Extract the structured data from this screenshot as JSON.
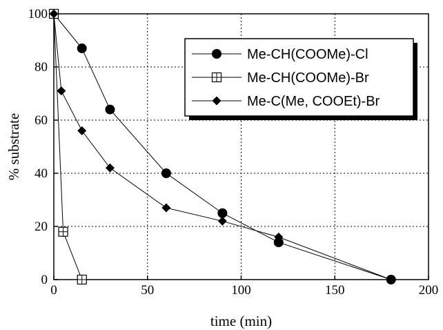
{
  "chart_data": {
    "type": "line",
    "title": "",
    "xlabel": "time (min)",
    "ylabel": "% substrate",
    "xlim": [
      0,
      200
    ],
    "ylim": [
      0,
      100
    ],
    "x_ticks": [
      0,
      50,
      100,
      150,
      200
    ],
    "y_ticks": [
      0,
      20,
      40,
      60,
      80,
      100
    ],
    "grid": true,
    "grid_style": "dotted",
    "legend_position": "top-right",
    "series": [
      {
        "name": "Me-CH(COOMe)-Cl",
        "marker": "filled-circle",
        "color": "#000000",
        "points": [
          {
            "x": 0,
            "y": 100
          },
          {
            "x": 15,
            "y": 87
          },
          {
            "x": 30,
            "y": 64
          },
          {
            "x": 60,
            "y": 40
          },
          {
            "x": 90,
            "y": 25
          },
          {
            "x": 120,
            "y": 14
          },
          {
            "x": 180,
            "y": 0
          }
        ]
      },
      {
        "name": "Me-CH(COOMe)-Br",
        "marker": "open-square-cross",
        "color": "#000000",
        "points": [
          {
            "x": 0,
            "y": 100
          },
          {
            "x": 5,
            "y": 18
          },
          {
            "x": 15,
            "y": 0
          }
        ]
      },
      {
        "name": "Me-C(Me, COOEt)-Br",
        "marker": "filled-diamond",
        "color": "#000000",
        "points": [
          {
            "x": 0,
            "y": 100
          },
          {
            "x": 4,
            "y": 71
          },
          {
            "x": 15,
            "y": 56
          },
          {
            "x": 30,
            "y": 42
          },
          {
            "x": 60,
            "y": 27
          },
          {
            "x": 90,
            "y": 22
          },
          {
            "x": 120,
            "y": 16
          },
          {
            "x": 180,
            "y": 0
          }
        ]
      }
    ]
  }
}
